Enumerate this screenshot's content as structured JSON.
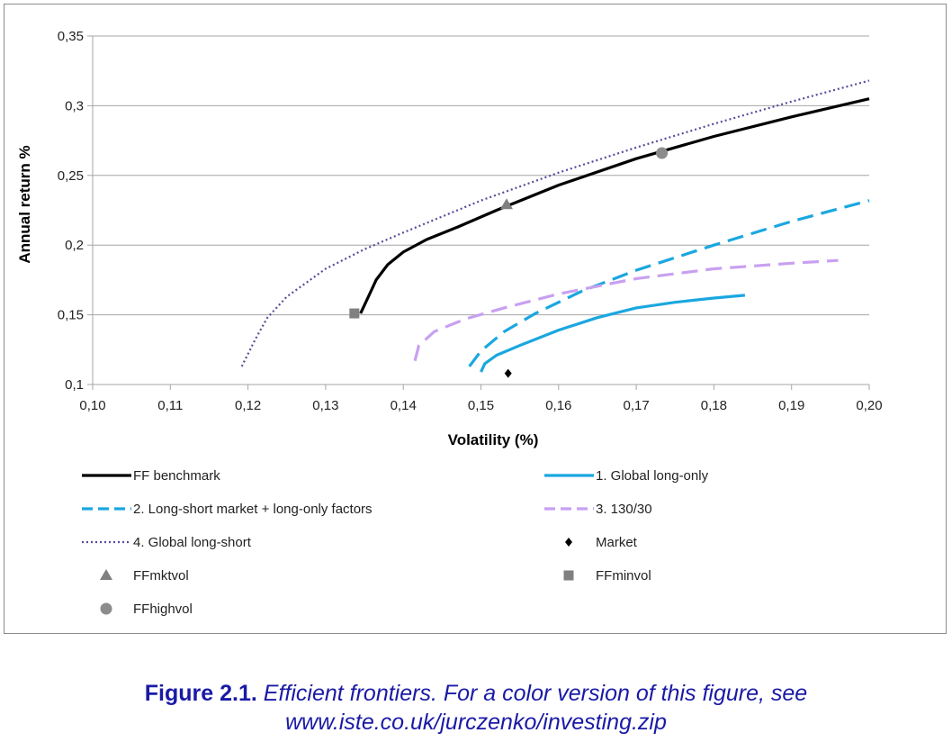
{
  "chart_data": {
    "type": "line",
    "xlabel": "Volatility (%)",
    "ylabel": "Annual return %",
    "xlim": [
      0.1,
      0.2
    ],
    "ylim": [
      0.1,
      0.35
    ],
    "x_ticks": [
      "0,10",
      "0,11",
      "0,12",
      "0,13",
      "0,14",
      "0,15",
      "0,16",
      "0,17",
      "0,18",
      "0,19",
      "0,20"
    ],
    "y_ticks": [
      "0,1",
      "0,15",
      "0,2",
      "0,25",
      "0,3",
      "0,35"
    ],
    "grid": "horizontal",
    "legend_position": "bottom",
    "series": [
      {
        "name": "FF benchmark",
        "color": "#000000",
        "style": "solid",
        "x": [
          0.1345,
          0.1355,
          0.1365,
          0.138,
          0.14,
          0.143,
          0.147,
          0.152,
          0.16,
          0.17,
          0.18,
          0.19,
          0.2
        ],
        "y": [
          0.151,
          0.163,
          0.175,
          0.186,
          0.195,
          0.204,
          0.213,
          0.225,
          0.243,
          0.262,
          0.278,
          0.292,
          0.305
        ]
      },
      {
        "name": "1. Global long-only",
        "color": "#1aa7e0",
        "style": "solid",
        "x": [
          0.15,
          0.1505,
          0.152,
          0.155,
          0.16,
          0.165,
          0.17,
          0.175,
          0.18,
          0.184
        ],
        "y": [
          0.109,
          0.115,
          0.121,
          0.128,
          0.139,
          0.148,
          0.155,
          0.159,
          0.162,
          0.164
        ]
      },
      {
        "name": "2. Long-short market + long-only factors",
        "color": "#1aa7e0",
        "style": "dashed",
        "x": [
          0.1485,
          0.15,
          0.153,
          0.157,
          0.163,
          0.17,
          0.18,
          0.19,
          0.2
        ],
        "y": [
          0.113,
          0.124,
          0.138,
          0.151,
          0.167,
          0.182,
          0.2,
          0.217,
          0.232
        ]
      },
      {
        "name": "3. 130/30",
        "color": "#c8a0f0",
        "style": "dashed",
        "x": [
          0.1415,
          0.142,
          0.144,
          0.148,
          0.153,
          0.16,
          0.17,
          0.18,
          0.19,
          0.196
        ],
        "y": [
          0.117,
          0.128,
          0.138,
          0.147,
          0.155,
          0.165,
          0.176,
          0.183,
          0.187,
          0.189
        ]
      },
      {
        "name": "4. Global long-short",
        "color": "#5a4a9a",
        "style": "dotted",
        "x": [
          0.1192,
          0.121,
          0.1225,
          0.125,
          0.13,
          0.135,
          0.14,
          0.15,
          0.16,
          0.17,
          0.18,
          0.19,
          0.2
        ],
        "y": [
          0.113,
          0.133,
          0.148,
          0.163,
          0.183,
          0.197,
          0.209,
          0.232,
          0.252,
          0.27,
          0.287,
          0.303,
          0.318
        ]
      }
    ],
    "points": [
      {
        "name": "Market",
        "marker": "diamond",
        "color": "#000000",
        "x": 0.1535,
        "y": 0.108
      },
      {
        "name": "FFmktvol",
        "marker": "triangle",
        "color": "#808080",
        "x": 0.1533,
        "y": 0.229
      },
      {
        "name": "FFminvol",
        "marker": "square",
        "color": "#808080",
        "x": 0.1337,
        "y": 0.151
      },
      {
        "name": "FFhighvol",
        "marker": "circle",
        "color": "#8c8c8c",
        "x": 0.1733,
        "y": 0.266
      }
    ]
  },
  "legend": {
    "items": [
      {
        "label": "FF benchmark",
        "kind": "line",
        "style": "solid",
        "color": "#000000"
      },
      {
        "label": "1. Global long-only",
        "kind": "line",
        "style": "solid",
        "color": "#1aa7e0"
      },
      {
        "label": "2. Long-short market + long-only factors",
        "kind": "line",
        "style": "dashed",
        "color": "#1aa7e0"
      },
      {
        "label": "3. 130/30",
        "kind": "line",
        "style": "dashed",
        "color": "#c8a0f0"
      },
      {
        "label": "4. Global long-short",
        "kind": "line",
        "style": "dotted",
        "color": "#5a4a9a"
      },
      {
        "label": "Market",
        "kind": "marker",
        "marker": "diamond",
        "color": "#000000"
      },
      {
        "label": "FFmktvol",
        "kind": "marker",
        "marker": "triangle",
        "color": "#808080"
      },
      {
        "label": "FFminvol",
        "kind": "marker",
        "marker": "square",
        "color": "#808080"
      },
      {
        "label": "FFhighvol",
        "kind": "marker",
        "marker": "circle",
        "color": "#8c8c8c"
      }
    ]
  },
  "caption": {
    "lead": "Figure 2.1.",
    "body": "Efficient frontiers. For a color version of this figure, see",
    "url": "www.iste.co.uk/jurczenko/investing.zip",
    "color": "#1a1aa6"
  }
}
